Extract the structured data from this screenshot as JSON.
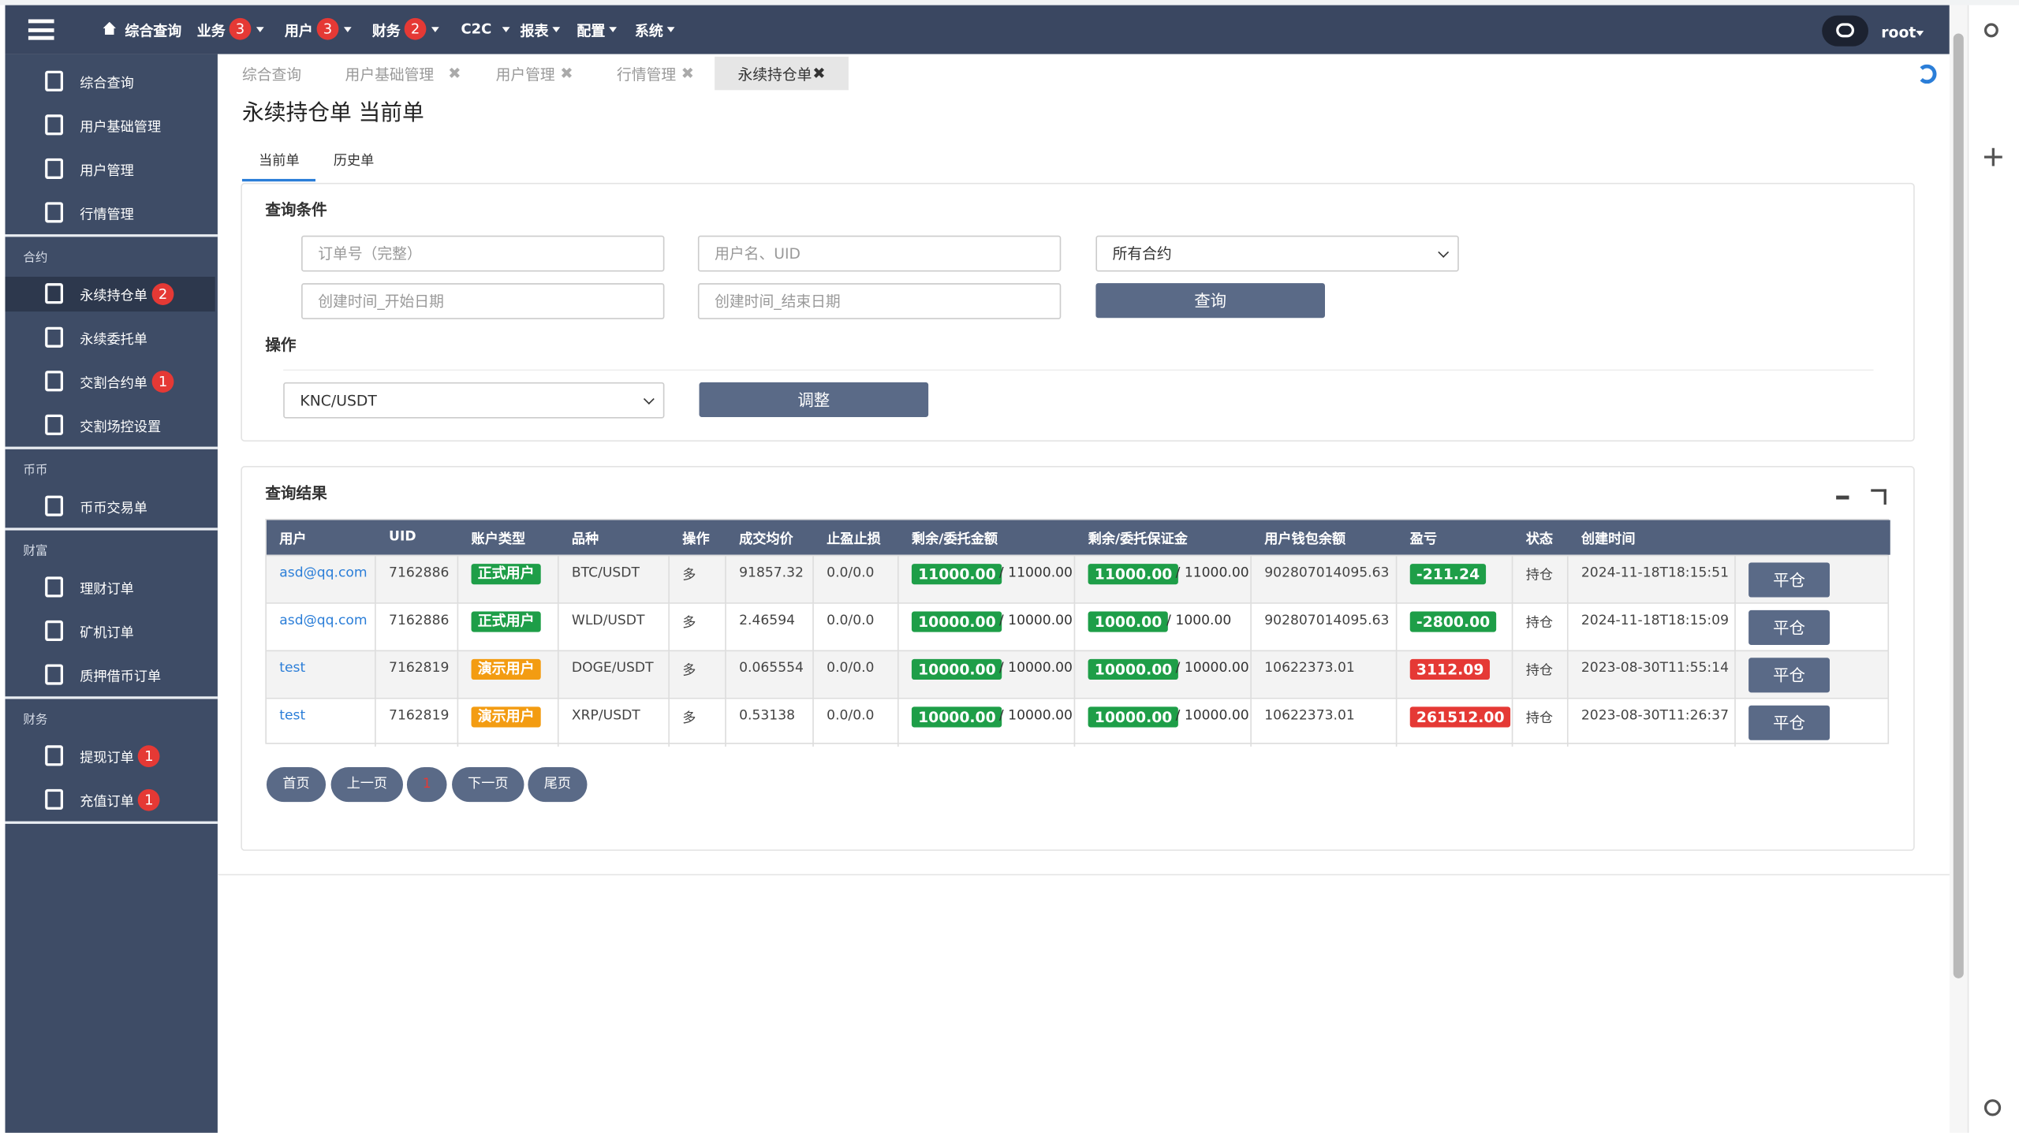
{
  "topnav": {
    "items": [
      {
        "label": "综合查询"
      },
      {
        "label": "业务",
        "badge": 3
      },
      {
        "label": "用户",
        "badge": 3
      },
      {
        "label": "财务",
        "badge": 2
      },
      {
        "label": "C2C"
      },
      {
        "label": "报表"
      },
      {
        "label": "配置"
      },
      {
        "label": "系统"
      }
    ],
    "user": "root"
  },
  "sidebar": {
    "groups": [
      {
        "items": [
          {
            "label": "综合查询"
          },
          {
            "label": "用户基础管理"
          },
          {
            "label": "用户管理"
          },
          {
            "label": "行情管理"
          }
        ]
      },
      {
        "title": "合约",
        "items": [
          {
            "label": "永续持仓单",
            "badge": 2,
            "active": true
          },
          {
            "label": "永续委托单"
          },
          {
            "label": "交割合约单",
            "badge": 1
          },
          {
            "label": "交割场控设置"
          }
        ]
      },
      {
        "title": "币币",
        "items": [
          {
            "label": "币币交易单"
          }
        ]
      },
      {
        "title": "财富",
        "items": [
          {
            "label": "理财订单"
          },
          {
            "label": "矿机订单"
          },
          {
            "label": "质押借币订单"
          }
        ]
      },
      {
        "title": "财务",
        "items": [
          {
            "label": "提现订单",
            "badge": 1
          },
          {
            "label": "充值订单",
            "badge": 1
          }
        ]
      }
    ]
  },
  "tabs": [
    {
      "label": "综合查询"
    },
    {
      "label": "用户基础管理"
    },
    {
      "label": "用户管理"
    },
    {
      "label": "行情管理"
    },
    {
      "label": "永续持仓单",
      "active": true
    }
  ],
  "page_title": "永续持仓单 当前单",
  "subtabs": [
    {
      "label": "当前单",
      "active": true
    },
    {
      "label": "历史单"
    }
  ],
  "query": {
    "title": "查询条件",
    "order_placeholder": "订单号（完整）",
    "user_placeholder": "用户名、UID",
    "contract_select": "所有合约",
    "start_placeholder": "创建时间_开始日期",
    "end_placeholder": "创建时间_结束日期",
    "button": "查询"
  },
  "operation": {
    "title": "操作",
    "select": "KNC/USDT",
    "button": "调整"
  },
  "results": {
    "title": "查询结果",
    "headers": [
      "用户",
      "UID",
      "账户类型",
      "品种",
      "操作",
      "成交均价",
      "止盈止损",
      "剩余/委托金额",
      "剩余/委托保证金",
      "用户钱包余额",
      "盈亏",
      "状态",
      "创建时间",
      ""
    ],
    "rows": [
      {
        "user": "asd@qq.com",
        "uid": "7162886",
        "type": "正式用户",
        "type_color": "#1e9e48",
        "symbol": "BTC/USDT",
        "op": "多",
        "price": "91857.32",
        "tpsl": "0.0/0.0",
        "amount": "11000.00",
        "amount_total": "/ 11000.00",
        "margin": "11000.00",
        "margin_total": "/ 11000.00",
        "wallet": "902807014095.63",
        "pnl": "-211.24",
        "pnl_color": "#1e9e48",
        "status": "持仓",
        "time": "2024-11-18T18:15:51",
        "action": "平仓"
      },
      {
        "user": "asd@qq.com",
        "uid": "7162886",
        "type": "正式用户",
        "type_color": "#1e9e48",
        "symbol": "WLD/USDT",
        "op": "多",
        "price": "2.46594",
        "tpsl": "0.0/0.0",
        "amount": "10000.00",
        "amount_total": "/ 10000.00",
        "margin": "1000.00",
        "margin_total": "/ 1000.00",
        "wallet": "902807014095.63",
        "pnl": "-2800.00",
        "pnl_color": "#1e9e48",
        "status": "持仓",
        "time": "2024-11-18T18:15:09",
        "action": "平仓"
      },
      {
        "user": "test",
        "uid": "7162819",
        "type": "演示用户",
        "type_color": "#f39c12",
        "symbol": "DOGE/USDT",
        "op": "多",
        "price": "0.065554",
        "tpsl": "0.0/0.0",
        "amount": "10000.00",
        "amount_total": "/ 10000.00",
        "margin": "10000.00",
        "margin_total": "/ 10000.00",
        "wallet": "10622373.01",
        "pnl": "3112.09",
        "pnl_color": "#e53935",
        "status": "持仓",
        "time": "2023-08-30T11:55:14",
        "action": "平仓"
      },
      {
        "user": "test",
        "uid": "7162819",
        "type": "演示用户",
        "type_color": "#f39c12",
        "symbol": "XRP/USDT",
        "op": "多",
        "price": "0.53138",
        "tpsl": "0.0/0.0",
        "amount": "10000.00",
        "amount_total": "/ 10000.00",
        "margin": "10000.00",
        "margin_total": "/ 10000.00",
        "wallet": "10622373.01",
        "pnl": "261512.00",
        "pnl_color": "#e53935",
        "status": "持仓",
        "time": "2023-08-30T11:26:37",
        "action": "平仓"
      }
    ],
    "pagination": [
      "首页",
      "上一页",
      "1",
      "下一页",
      "尾页"
    ]
  }
}
